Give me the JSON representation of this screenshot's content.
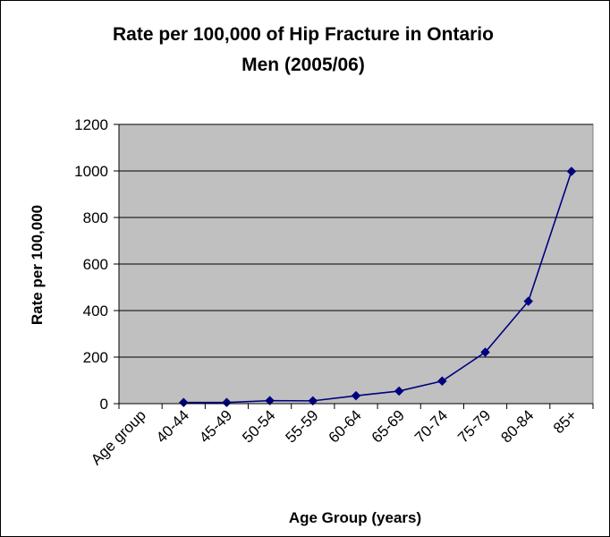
{
  "chart_data": {
    "type": "line",
    "title": [
      "Rate per 100,000 of Hip Fracture in Ontario",
      "Men (2005/06)"
    ],
    "xlabel": "Age Group (years)",
    "ylabel": "Rate per 100,000",
    "categories": [
      "Age group",
      "40-44",
      "45-49",
      "50-54",
      "55-59",
      "60-64",
      "65-69",
      "70-74",
      "75-79",
      "80-84",
      "85+"
    ],
    "series": [
      {
        "values": [
          null,
          5,
          5,
          13,
          12,
          34,
          54,
          97,
          221,
          440,
          998
        ]
      }
    ],
    "ylim": [
      0,
      1200
    ],
    "yticks": [
      0,
      200,
      400,
      600,
      800,
      1000,
      1200
    ],
    "grid": true,
    "legend": "none",
    "colors": {
      "plot_background": "#c0c0c0",
      "line": "#000080",
      "marker": "#000080",
      "gridline": "#000000"
    }
  }
}
